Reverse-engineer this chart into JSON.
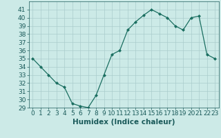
{
  "x": [
    0,
    1,
    2,
    3,
    4,
    5,
    6,
    7,
    8,
    9,
    10,
    11,
    12,
    13,
    14,
    15,
    16,
    17,
    18,
    19,
    20,
    21,
    22,
    23
  ],
  "y": [
    35,
    34,
    33,
    32,
    31.5,
    29.5,
    29.2,
    29,
    30.5,
    33,
    35.5,
    36,
    38.5,
    39.5,
    40.3,
    41,
    40.5,
    40,
    39,
    38.5,
    40,
    40.2,
    35.5,
    35
  ],
  "line_color": "#1a6e60",
  "marker": "D",
  "marker_size": 2.0,
  "bg_color": "#cceae7",
  "grid_color": "#aacccc",
  "xlabel": "Humidex (Indice chaleur)",
  "ylim": [
    29,
    42
  ],
  "xlim": [
    -0.5,
    23.5
  ],
  "yticks": [
    29,
    30,
    31,
    32,
    33,
    34,
    35,
    36,
    37,
    38,
    39,
    40,
    41
  ],
  "xticks": [
    0,
    1,
    2,
    3,
    4,
    5,
    6,
    7,
    8,
    9,
    10,
    11,
    12,
    13,
    14,
    15,
    16,
    17,
    18,
    19,
    20,
    21,
    22,
    23
  ],
  "xlabel_fontsize": 7.5,
  "tick_fontsize": 6.5,
  "tick_color": "#1a5a5a",
  "axis_color": "#1a5a5a"
}
